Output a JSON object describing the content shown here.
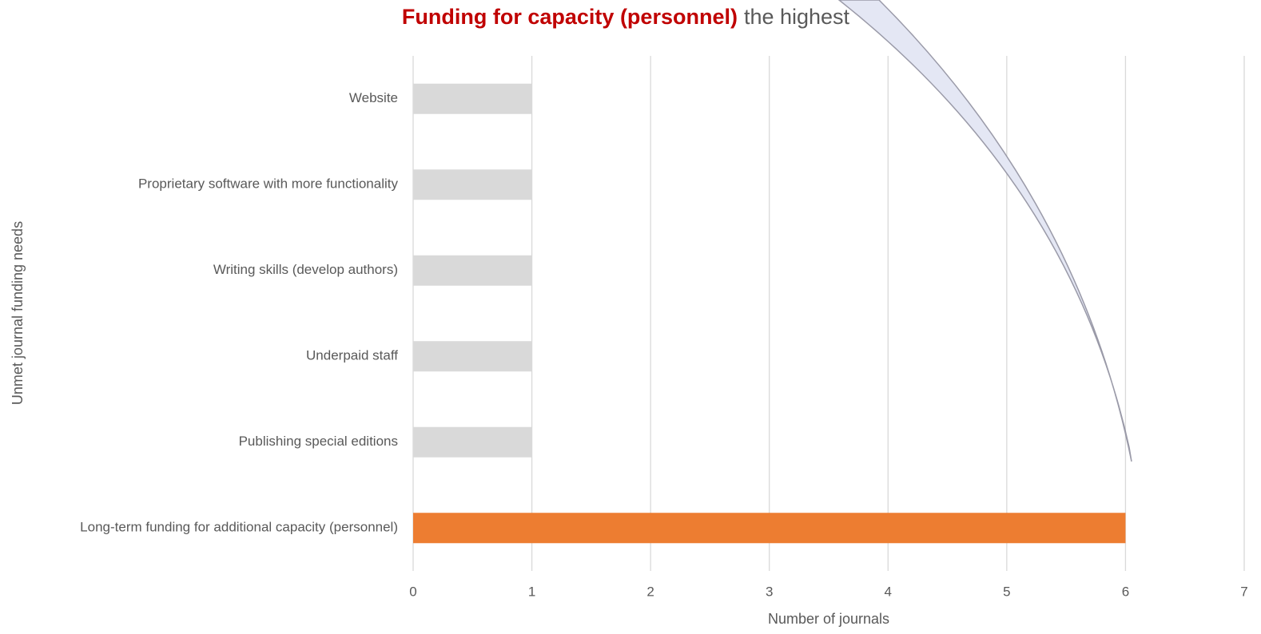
{
  "chart_data": {
    "type": "bar",
    "orientation": "horizontal",
    "title_emphasis": "Funding for capacity (personnel)",
    "title": "the highest",
    "title_emphasis_color": "#c00000",
    "categories": [
      "Website",
      "Proprietary software with more functionality",
      "Writing skills (develop authors)",
      "Underpaid staff",
      "Publishing special editions",
      "Long-term funding for additional capacity (personnel)"
    ],
    "values": [
      1,
      1,
      1,
      1,
      1,
      6
    ],
    "colors": [
      "#d9d9d9",
      "#d9d9d9",
      "#d9d9d9",
      "#d9d9d9",
      "#d9d9d9",
      "#ed7d31"
    ],
    "xlim": [
      0,
      7
    ],
    "xticks": [
      0,
      1,
      2,
      3,
      4,
      5,
      6,
      7
    ],
    "grid": true,
    "xlabel": "Number of journals",
    "ylabel": "Unmet journal funding needs"
  }
}
